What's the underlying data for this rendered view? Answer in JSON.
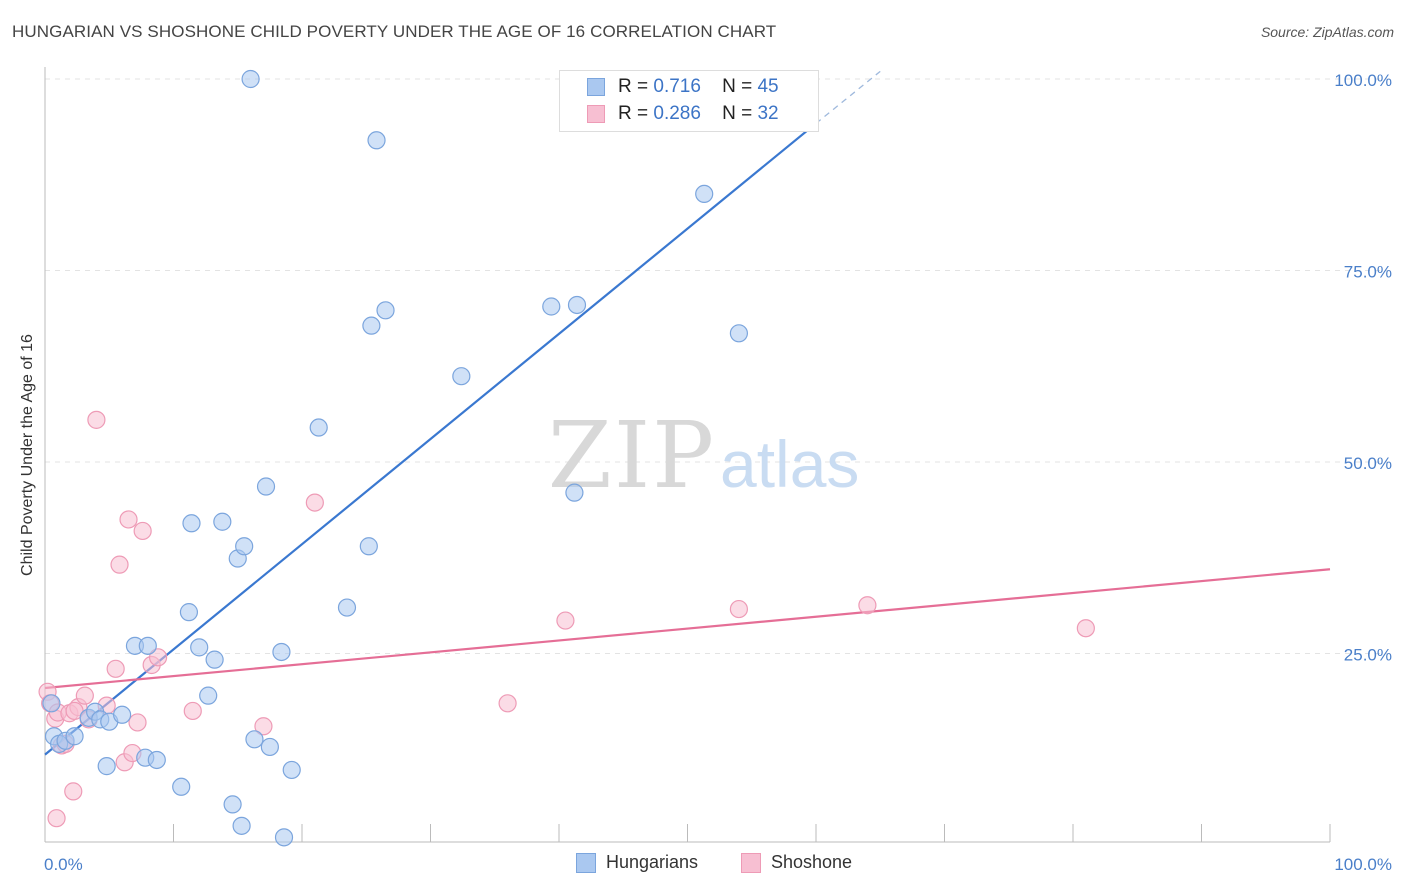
{
  "title": "HUNGARIAN VS SHOSHONE CHILD POVERTY UNDER THE AGE OF 16 CORRELATION CHART",
  "source": "Source: ZipAtlas.com",
  "watermark": {
    "zip": "ZIP",
    "atlas": "atlas"
  },
  "colors": {
    "hungarians_fill": "#aac8f0",
    "hungarians_stroke": "#7ba5dd",
    "hungarians_line": "#3a78d0",
    "shoshone_fill": "#f7bfd2",
    "shoshone_stroke": "#ee9bb6",
    "shoshone_line": "#e56e96",
    "tick_text": "#4a7fc9"
  },
  "legend": {
    "rows": [
      {
        "r_label": "R =",
        "r_value": "0.716",
        "n_label": "N =",
        "n_value": "45"
      },
      {
        "r_label": "R =",
        "r_value": "0.286",
        "n_label": "N =",
        "n_value": "32"
      }
    ]
  },
  "bottom_legend": {
    "hungarians": "Hungarians",
    "shoshone": "Shoshone"
  },
  "chart_data": {
    "type": "scatter",
    "title": "HUNGARIAN VS SHOSHONE CHILD POVERTY UNDER THE AGE OF 16 CORRELATION CHART",
    "xlabel": "",
    "ylabel": "Child Poverty Under the Age of 16",
    "xlim": [
      0,
      100
    ],
    "ylim": [
      0,
      100
    ],
    "x_tick_labels": [
      "0.0%",
      "100.0%"
    ],
    "y_ticks": [
      25,
      50,
      75,
      100
    ],
    "y_tick_labels": [
      "25.0%",
      "50.0%",
      "75.0%",
      "100.0%"
    ],
    "grid": true,
    "series": [
      {
        "name": "Hungarians",
        "R": 0.716,
        "N": 45,
        "trend": {
          "x0": 0,
          "y0": 11.8,
          "x1": 60,
          "y1": 94.2,
          "dash_x1": 65,
          "dash_y1": 101
        },
        "points": [
          [
            0.5,
            18.5
          ],
          [
            0.7,
            14.2
          ],
          [
            1.1,
            13.2
          ],
          [
            1.6,
            13.6
          ],
          [
            2.3,
            14.2
          ],
          [
            3.4,
            16.6
          ],
          [
            3.9,
            17.4
          ],
          [
            4.3,
            16.4
          ],
          [
            5.0,
            16.1
          ],
          [
            6.0,
            17.0
          ],
          [
            4.8,
            10.3
          ],
          [
            7.0,
            26.0
          ],
          [
            7.8,
            11.4
          ],
          [
            8.0,
            26.0
          ],
          [
            8.7,
            11.1
          ],
          [
            10.6,
            7.6
          ],
          [
            11.2,
            30.4
          ],
          [
            11.4,
            42.0
          ],
          [
            12.0,
            25.8
          ],
          [
            12.7,
            19.5
          ],
          [
            13.2,
            24.2
          ],
          [
            13.8,
            42.2
          ],
          [
            14.6,
            5.3
          ],
          [
            15.0,
            37.4
          ],
          [
            15.5,
            39.0
          ],
          [
            15.3,
            2.5
          ],
          [
            16.3,
            13.8
          ],
          [
            17.5,
            12.8
          ],
          [
            18.4,
            25.2
          ],
          [
            16.0,
            100
          ],
          [
            17.2,
            46.8
          ],
          [
            18.6,
            1.0
          ],
          [
            19.2,
            9.8
          ],
          [
            21.3,
            54.5
          ],
          [
            23.5,
            31.0
          ],
          [
            25.2,
            39.0
          ],
          [
            25.4,
            67.8
          ],
          [
            25.8,
            92.0
          ],
          [
            26.5,
            69.8
          ],
          [
            32.4,
            61.2
          ],
          [
            39.4,
            70.3
          ],
          [
            41.4,
            70.5
          ],
          [
            41.2,
            46.0
          ],
          [
            51.3,
            85.0
          ],
          [
            54.0,
            66.8
          ]
        ]
      },
      {
        "name": "Shoshone",
        "R": 0.286,
        "N": 32,
        "trend": {
          "x0": 0,
          "y0": 20.5,
          "x1": 100,
          "y1": 36.0
        },
        "points": [
          [
            0.2,
            20.0
          ],
          [
            0.4,
            18.5
          ],
          [
            0.8,
            16.5
          ],
          [
            1.0,
            17.3
          ],
          [
            1.3,
            13.0
          ],
          [
            1.6,
            13.2
          ],
          [
            1.9,
            17.2
          ],
          [
            2.2,
            7.0
          ],
          [
            2.6,
            18.0
          ],
          [
            3.1,
            19.5
          ],
          [
            3.4,
            16.4
          ],
          [
            4.0,
            55.5
          ],
          [
            5.5,
            23.0
          ],
          [
            5.8,
            36.6
          ],
          [
            6.2,
            10.8
          ],
          [
            6.5,
            42.5
          ],
          [
            6.8,
            12.0
          ],
          [
            7.2,
            16.0
          ],
          [
            7.6,
            41.0
          ],
          [
            8.3,
            23.5
          ],
          [
            8.8,
            24.5
          ],
          [
            11.5,
            17.5
          ],
          [
            2.3,
            17.5
          ],
          [
            0.9,
            3.5
          ],
          [
            17.0,
            15.5
          ],
          [
            21.0,
            44.7
          ],
          [
            36.0,
            18.5
          ],
          [
            40.5,
            29.3
          ],
          [
            54.0,
            30.8
          ],
          [
            64.0,
            31.3
          ],
          [
            81.0,
            28.3
          ],
          [
            4.8,
            18.2
          ]
        ]
      }
    ]
  }
}
